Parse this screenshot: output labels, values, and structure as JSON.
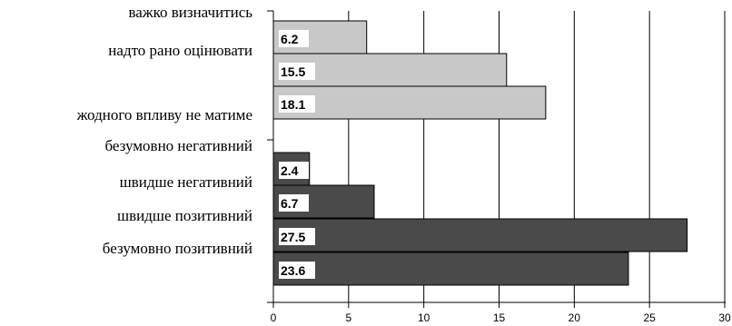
{
  "chart_data": {
    "type": "bar",
    "orientation": "horizontal",
    "title": "",
    "xlabel": "",
    "ylabel": "",
    "xlim": [
      0,
      30
    ],
    "x_ticks": [
      0,
      5,
      10,
      15,
      20,
      25,
      30
    ],
    "grid": "vertical",
    "legend": "none",
    "categories": [
      "важко визначитись",
      "надто рано оцінювати",
      "жодного впливу не матиме",
      "безумовно негативний",
      "швидше  негативний",
      "швидше позитивний",
      "безумовно позитивний"
    ],
    "values": [
      6.2,
      15.5,
      18.1,
      2.4,
      6.7,
      27.5,
      23.6
    ],
    "value_labels": [
      "6.2",
      "15.5",
      "18.1",
      "2.4",
      "6.7",
      "27.5",
      "23.6"
    ],
    "groups": [
      {
        "items": [
          0,
          1,
          2
        ],
        "color": "#c8c8c8"
      },
      {
        "items": [
          3,
          4,
          5,
          6
        ],
        "color": "#4a4a4a"
      }
    ]
  }
}
